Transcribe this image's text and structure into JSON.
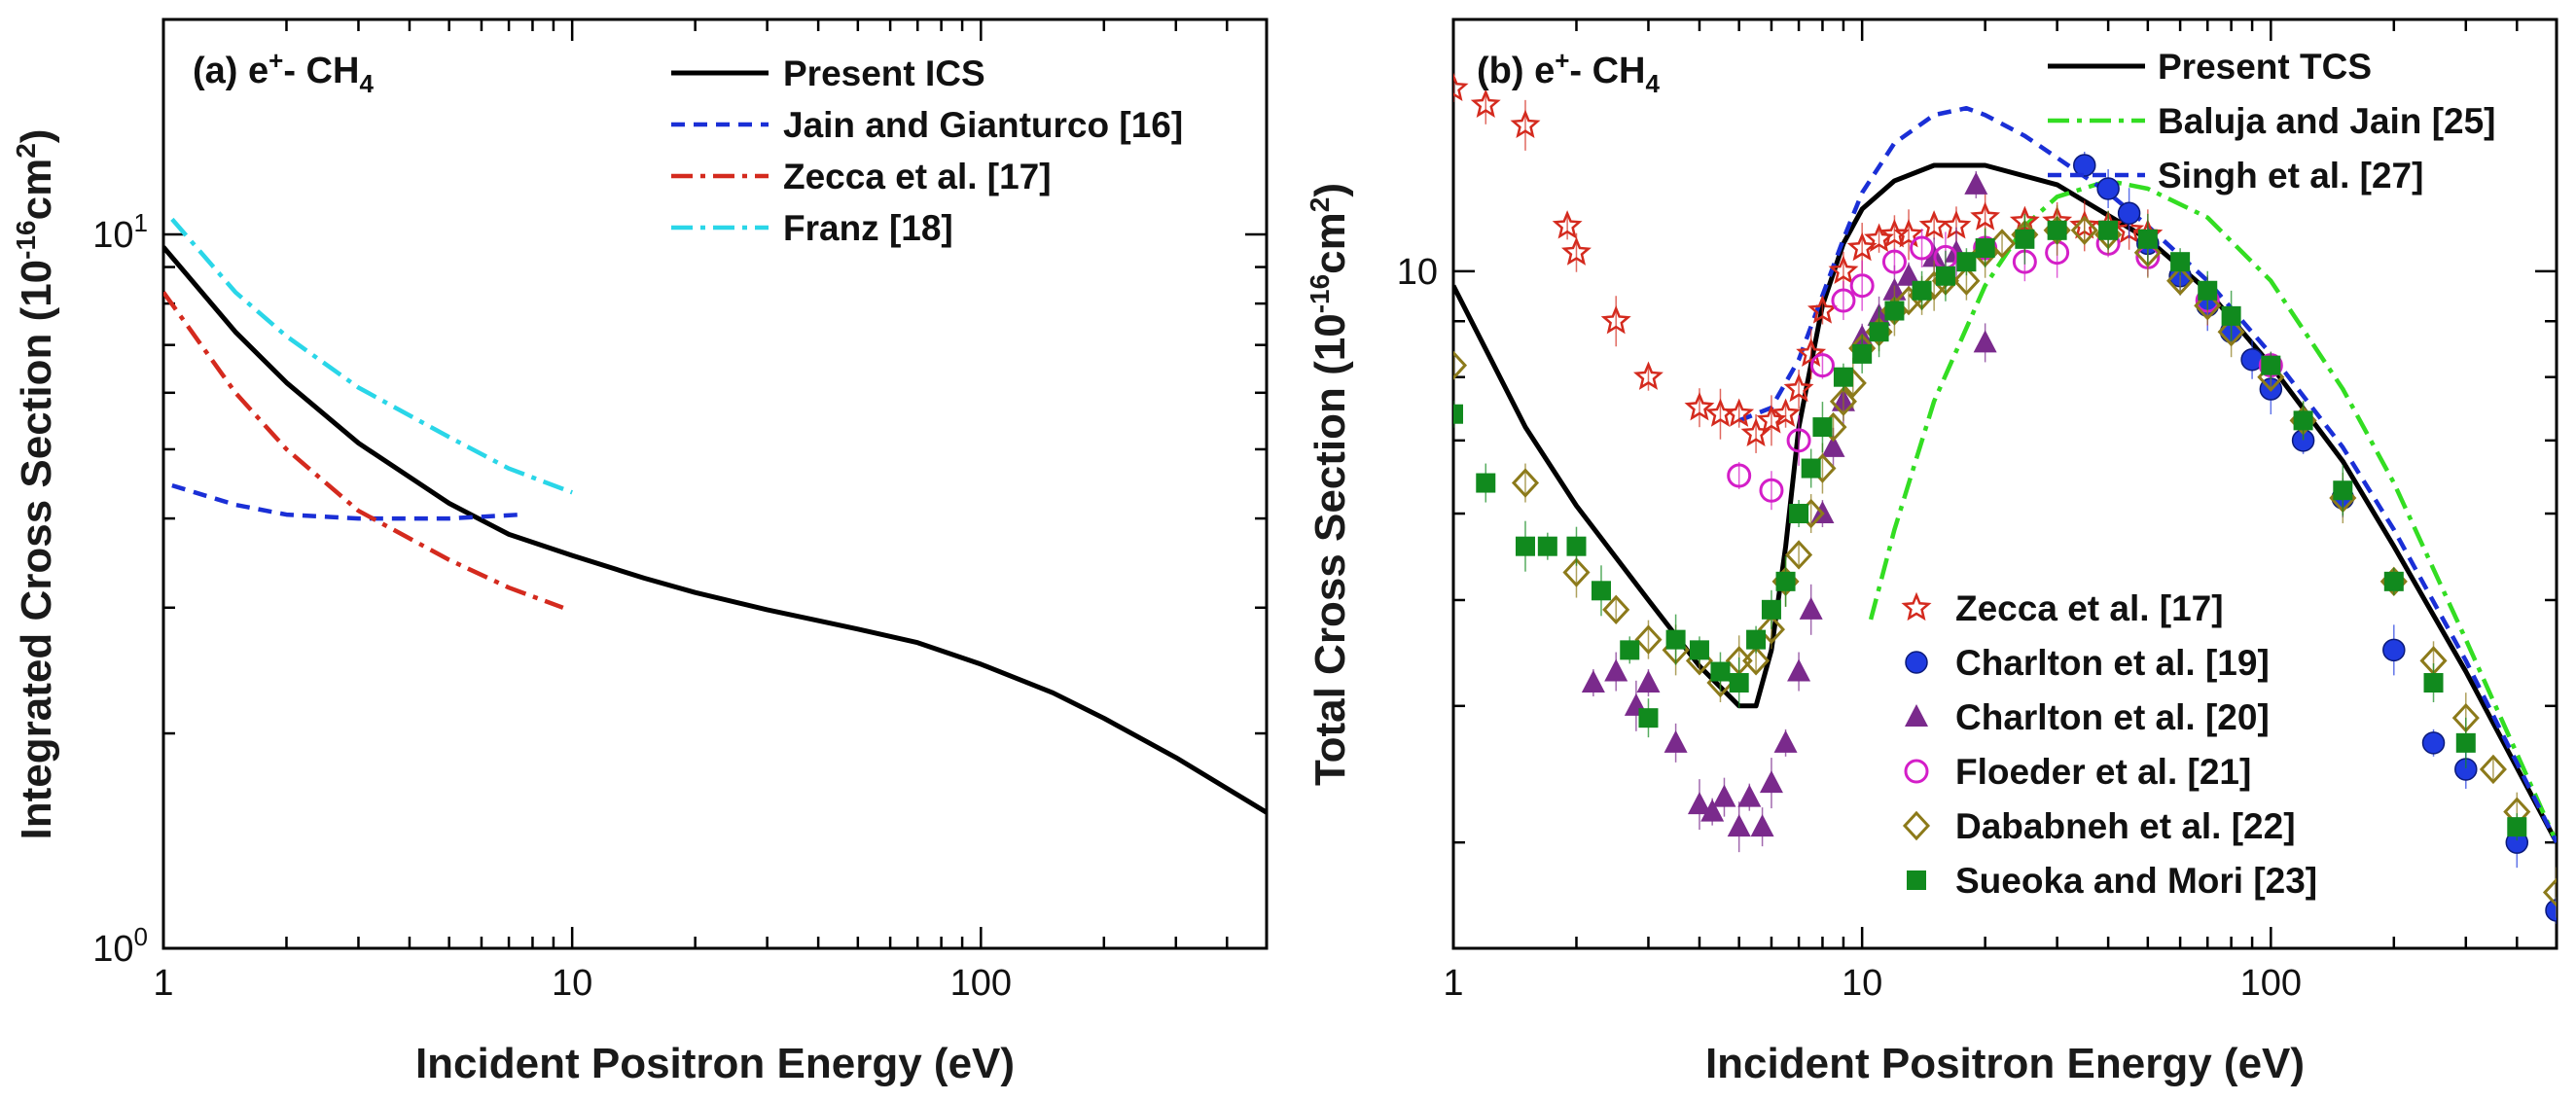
{
  "chart_data": [
    {
      "type": "line",
      "panel": "a",
      "panel_label_prefix": "(a) e",
      "panel_label_sup": "+",
      "panel_label_mid": "- CH",
      "panel_label_sub": "4",
      "ylabel_main": "Integrated Cross Section (10",
      "ylabel_sup": "-16",
      "ylabel_unit": "cm",
      "ylabel_sup2": "2",
      "ylabel_end": ")",
      "xlabel": "Incident Positron Energy (eV)",
      "xscale": "log",
      "yscale": "log",
      "xlim": [
        1,
        500
      ],
      "ylim": [
        1,
        20
      ],
      "x_ticks": [
        {
          "v": 1,
          "label": "1"
        },
        {
          "v": 10,
          "label": "10"
        },
        {
          "v": 100,
          "label": "100"
        }
      ],
      "y_ticks": [
        {
          "v": 1,
          "base": "10",
          "sup": "0"
        },
        {
          "v": 10,
          "base": "10",
          "sup": "1"
        }
      ],
      "legend_position": "top-right",
      "series": [
        {
          "name": "Present ICS",
          "color": "#000000",
          "style": "solid",
          "x": [
            1,
            1.5,
            2,
            3,
            5,
            7,
            10,
            15,
            20,
            30,
            50,
            70,
            100,
            150,
            200,
            300,
            500
          ],
          "y": [
            9.6,
            7.3,
            6.2,
            5.1,
            4.2,
            3.8,
            3.55,
            3.3,
            3.15,
            2.98,
            2.8,
            2.68,
            2.5,
            2.28,
            2.1,
            1.85,
            1.55
          ]
        },
        {
          "name": "Jain and Gianturco [16]",
          "color": "#1a2fd6",
          "style": "dash",
          "x": [
            1.05,
            1.5,
            2,
            3,
            5,
            7.5
          ],
          "y": [
            4.45,
            4.18,
            4.05,
            4.0,
            4.0,
            4.05
          ]
        },
        {
          "name": "Zecca et al. [17]",
          "color": "#d42a1e",
          "style": "dashdot",
          "x": [
            1.0,
            1.5,
            2,
            3,
            5,
            7,
            9.5
          ],
          "y": [
            8.3,
            6.0,
            5.0,
            4.1,
            3.5,
            3.2,
            3.0
          ]
        },
        {
          "name": "Franz [18]",
          "color": "#2ad6e8",
          "style": "dashdot",
          "x": [
            1.05,
            1.5,
            2,
            3,
            5,
            7,
            10
          ],
          "y": [
            10.5,
            8.3,
            7.2,
            6.1,
            5.2,
            4.7,
            4.35
          ]
        }
      ]
    },
    {
      "type": "scatter",
      "panel": "b",
      "panel_label_prefix": "(b) e",
      "panel_label_sup": "+",
      "panel_label_mid": "- CH",
      "panel_label_sub": "4",
      "ylabel_main": "Total Cross Section (10",
      "ylabel_sup": "-16",
      "ylabel_unit": "cm",
      "ylabel_sup2": "2",
      "ylabel_end": ")",
      "xlabel": "Incident Positron Energy (eV)",
      "xscale": "log",
      "yscale": "log",
      "xlim": [
        1,
        500
      ],
      "ylim": [
        2.4,
        17
      ],
      "x_ticks": [
        {
          "v": 1,
          "label": "1"
        },
        {
          "v": 10,
          "label": "10"
        },
        {
          "v": 100,
          "label": "100"
        }
      ],
      "y_ticks": [
        {
          "v": 10,
          "label": "10"
        }
      ],
      "legend_position": "top-right and lower-middle",
      "series": [
        {
          "name": "Present TCS",
          "color": "#000000",
          "style": "solid",
          "kind": "line",
          "x": [
            1,
            1.5,
            2,
            3,
            4,
            5,
            5.5,
            6,
            6.5,
            7,
            8,
            9,
            10,
            12,
            15,
            20,
            30,
            50,
            70,
            100,
            150,
            200,
            300,
            500
          ],
          "y": [
            9.7,
            7.2,
            6.1,
            5.0,
            4.35,
            4.0,
            4.0,
            4.5,
            5.6,
            7.2,
            9.3,
            10.6,
            11.4,
            12.1,
            12.5,
            12.5,
            12.0,
            10.7,
            9.6,
            8.2,
            6.7,
            5.6,
            4.3,
            3.0
          ]
        },
        {
          "name": "Baluja and Jain [25]",
          "color": "#33dd22",
          "style": "dashdot",
          "kind": "line",
          "x": [
            10.5,
            12,
            15,
            20,
            25,
            30,
            40,
            50,
            70,
            100,
            150,
            200,
            300,
            500
          ],
          "y": [
            4.8,
            5.8,
            7.6,
            9.7,
            11.0,
            11.7,
            12.1,
            11.9,
            11.2,
            9.8,
            7.8,
            6.4,
            4.6,
            3.0
          ]
        },
        {
          "name": "Singh et al. [27]",
          "color": "#1a2fd6",
          "style": "dash",
          "kind": "line",
          "x": [
            5,
            6,
            7,
            8,
            9,
            10,
            12,
            15,
            18,
            20,
            25,
            30,
            40,
            50,
            70,
            100,
            150,
            200,
            300,
            500
          ],
          "y": [
            7.3,
            7.5,
            8.3,
            9.5,
            10.7,
            11.8,
            13.1,
            13.9,
            14.1,
            13.9,
            13.3,
            12.7,
            11.8,
            11.0,
            9.8,
            8.4,
            6.9,
            5.8,
            4.4,
            3.0
          ]
        },
        {
          "name": "Zecca et al. [17]",
          "color": "#d42a1e",
          "marker": "star-open",
          "kind": "points",
          "x": [
            1.0,
            1.2,
            1.5,
            1.9,
            2.0,
            2.5,
            3.0,
            4.0,
            4.5,
            5.0,
            5.5,
            6.0,
            6.5,
            7.0,
            7.5,
            8.0,
            9.0,
            10,
            11,
            12,
            13,
            15,
            17,
            20,
            25,
            30,
            35,
            40,
            45,
            50
          ],
          "y": [
            14.7,
            14.2,
            13.6,
            11.0,
            10.4,
            9.0,
            8.0,
            7.5,
            7.4,
            7.4,
            7.1,
            7.3,
            7.4,
            7.8,
            8.4,
            9.2,
            10.0,
            10.5,
            10.7,
            10.8,
            10.8,
            11.0,
            11.0,
            11.2,
            11.1,
            11.1,
            11.0,
            11.0,
            10.9,
            10.8
          ]
        },
        {
          "name": "Charlton et al. [19]",
          "color": "#1f3be0",
          "marker": "circle-filled",
          "kind": "points",
          "x": [
            35,
            40,
            45,
            50,
            60,
            70,
            80,
            90,
            100,
            120,
            150,
            200,
            250,
            300,
            400,
            500
          ],
          "y": [
            12.5,
            11.9,
            11.3,
            10.6,
            9.9,
            9.3,
            8.8,
            8.3,
            7.8,
            7.0,
            6.2,
            4.5,
            3.7,
            3.5,
            3.0,
            2.6
          ]
        },
        {
          "name": "Charlton et al. [20]",
          "color": "#7a2a8c",
          "marker": "triangle-filled",
          "kind": "points",
          "x": [
            2.2,
            2.5,
            2.8,
            3.0,
            3.5,
            4.0,
            4.3,
            4.6,
            5.0,
            5.3,
            5.7,
            6.0,
            6.5,
            7.0,
            7.5,
            8.0,
            8.5,
            9.0,
            10,
            11,
            12,
            13,
            15,
            17,
            19,
            20
          ],
          "y": [
            4.2,
            4.3,
            4.0,
            4.2,
            3.7,
            3.25,
            3.2,
            3.3,
            3.1,
            3.3,
            3.1,
            3.4,
            3.7,
            4.3,
            4.9,
            6.0,
            6.9,
            7.6,
            8.7,
            9.1,
            9.6,
            9.9,
            10.3,
            10.4,
            12.0,
            8.6
          ]
        },
        {
          "name": "Floeder et al. [21]",
          "color": "#d41ec8",
          "marker": "circle-open",
          "kind": "points",
          "x": [
            5,
            6,
            7,
            8,
            9,
            10,
            12,
            14,
            16,
            20,
            25,
            30,
            40,
            50,
            70,
            100
          ],
          "y": [
            6.5,
            6.3,
            7.0,
            8.2,
            9.4,
            9.7,
            10.2,
            10.5,
            10.3,
            10.5,
            10.2,
            10.4,
            10.6,
            10.3,
            9.4,
            8.2
          ]
        },
        {
          "name": "Dababneh et al. [22]",
          "color": "#8c7a1a",
          "marker": "diamond-open",
          "kind": "points",
          "x": [
            1.0,
            1.5,
            2.0,
            2.5,
            3.0,
            3.5,
            4.0,
            4.5,
            5.0,
            5.5,
            6.0,
            6.5,
            7.0,
            7.5,
            8.0,
            8.5,
            9.0,
            9.5,
            10,
            11,
            12,
            13,
            14,
            15,
            16,
            18,
            20,
            22,
            25,
            30,
            35,
            40,
            50,
            60,
            70,
            80,
            100,
            120,
            150,
            200,
            250,
            300,
            350,
            400,
            500
          ],
          "y": [
            8.2,
            6.4,
            5.3,
            4.9,
            4.6,
            4.5,
            4.4,
            4.2,
            4.4,
            4.4,
            4.7,
            5.2,
            5.5,
            6.0,
            6.6,
            7.2,
            7.6,
            7.9,
            8.5,
            8.8,
            9.2,
            9.4,
            9.5,
            9.7,
            9.8,
            9.8,
            10.4,
            10.6,
            10.8,
            10.9,
            10.9,
            10.8,
            10.4,
            9.8,
            9.3,
            8.8,
            8.0,
            7.3,
            6.2,
            5.2,
            4.4,
            3.9,
            3.5,
            3.2,
            2.7
          ]
        },
        {
          "name": "Sueoka and Mori [23]",
          "color": "#118a1e",
          "marker": "square-filled",
          "kind": "points",
          "x": [
            1.0,
            1.2,
            1.5,
            1.7,
            2.0,
            2.3,
            2.7,
            3.0,
            3.5,
            4.0,
            4.5,
            5.0,
            5.5,
            6.0,
            6.5,
            7.0,
            7.5,
            8.0,
            9.0,
            10,
            11,
            12,
            14,
            16,
            18,
            20,
            25,
            30,
            40,
            50,
            60,
            70,
            80,
            100,
            120,
            150,
            200,
            250,
            300,
            400
          ],
          "y": [
            7.4,
            6.4,
            5.6,
            5.6,
            5.6,
            5.1,
            4.5,
            3.9,
            4.6,
            4.5,
            4.3,
            4.2,
            4.6,
            4.9,
            5.2,
            6.0,
            6.6,
            7.2,
            8.0,
            8.4,
            8.8,
            9.2,
            9.6,
            9.9,
            10.2,
            10.5,
            10.7,
            10.9,
            10.9,
            10.7,
            10.2,
            9.6,
            9.1,
            8.2,
            7.3,
            6.3,
            5.2,
            4.2,
            3.7,
            3.1
          ]
        }
      ]
    }
  ]
}
